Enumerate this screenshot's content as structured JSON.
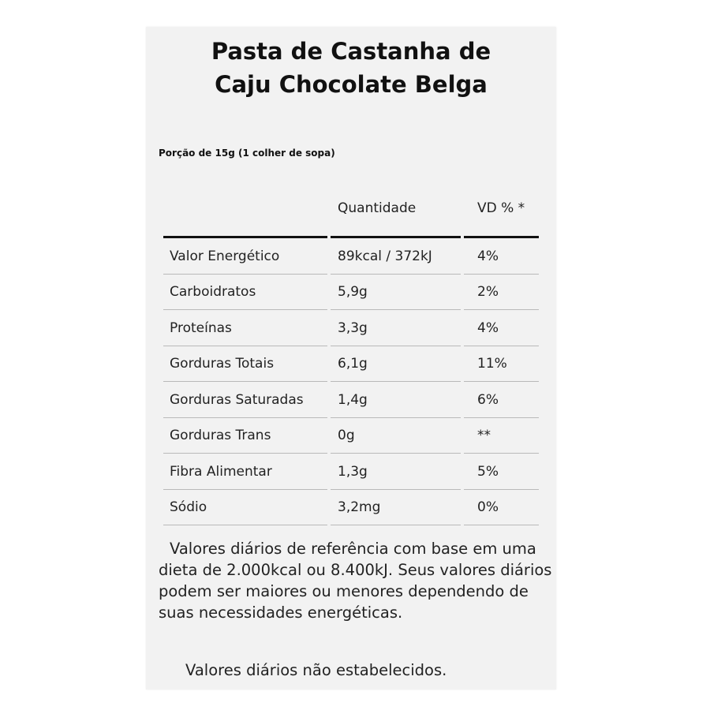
{
  "title": {
    "line1": "Pasta de Castanha de",
    "line2": "Caju Chocolate Belga"
  },
  "serving": "Porção de 15g (1 colher de sopa)",
  "table": {
    "headers": [
      "",
      "Quantidade",
      "VD % *"
    ],
    "rows": [
      {
        "name": "Valor Energético",
        "amount": "89kcal / 372kJ",
        "dv": "4%"
      },
      {
        "name": "Carboidratos",
        "amount": "5,9g",
        "dv": "2%"
      },
      {
        "name": "Proteínas",
        "amount": "3,3g",
        "dv": "4%"
      },
      {
        "name": "Gorduras Totais",
        "amount": "6,1g",
        "dv": "11%"
      },
      {
        "name": "Gorduras Saturadas",
        "amount": "1,4g",
        "dv": "6%"
      },
      {
        "name": "Gorduras Trans",
        "amount": "0g",
        "dv": "**"
      },
      {
        "name": "Fibra Alimentar",
        "amount": "1,3g",
        "dv": "5%"
      },
      {
        "name": "Sódio",
        "amount": "3,2mg",
        "dv": "0%"
      }
    ]
  },
  "footnotes": {
    "daily_values": "Valores diários de referência com base em uma dieta de 2.000kcal ou 8.400kJ. Seus valores diários podem ser maiores ou menores dependendo de suas necessidades energéticas.",
    "not_established": "Valores diários não estabelecidos."
  }
}
